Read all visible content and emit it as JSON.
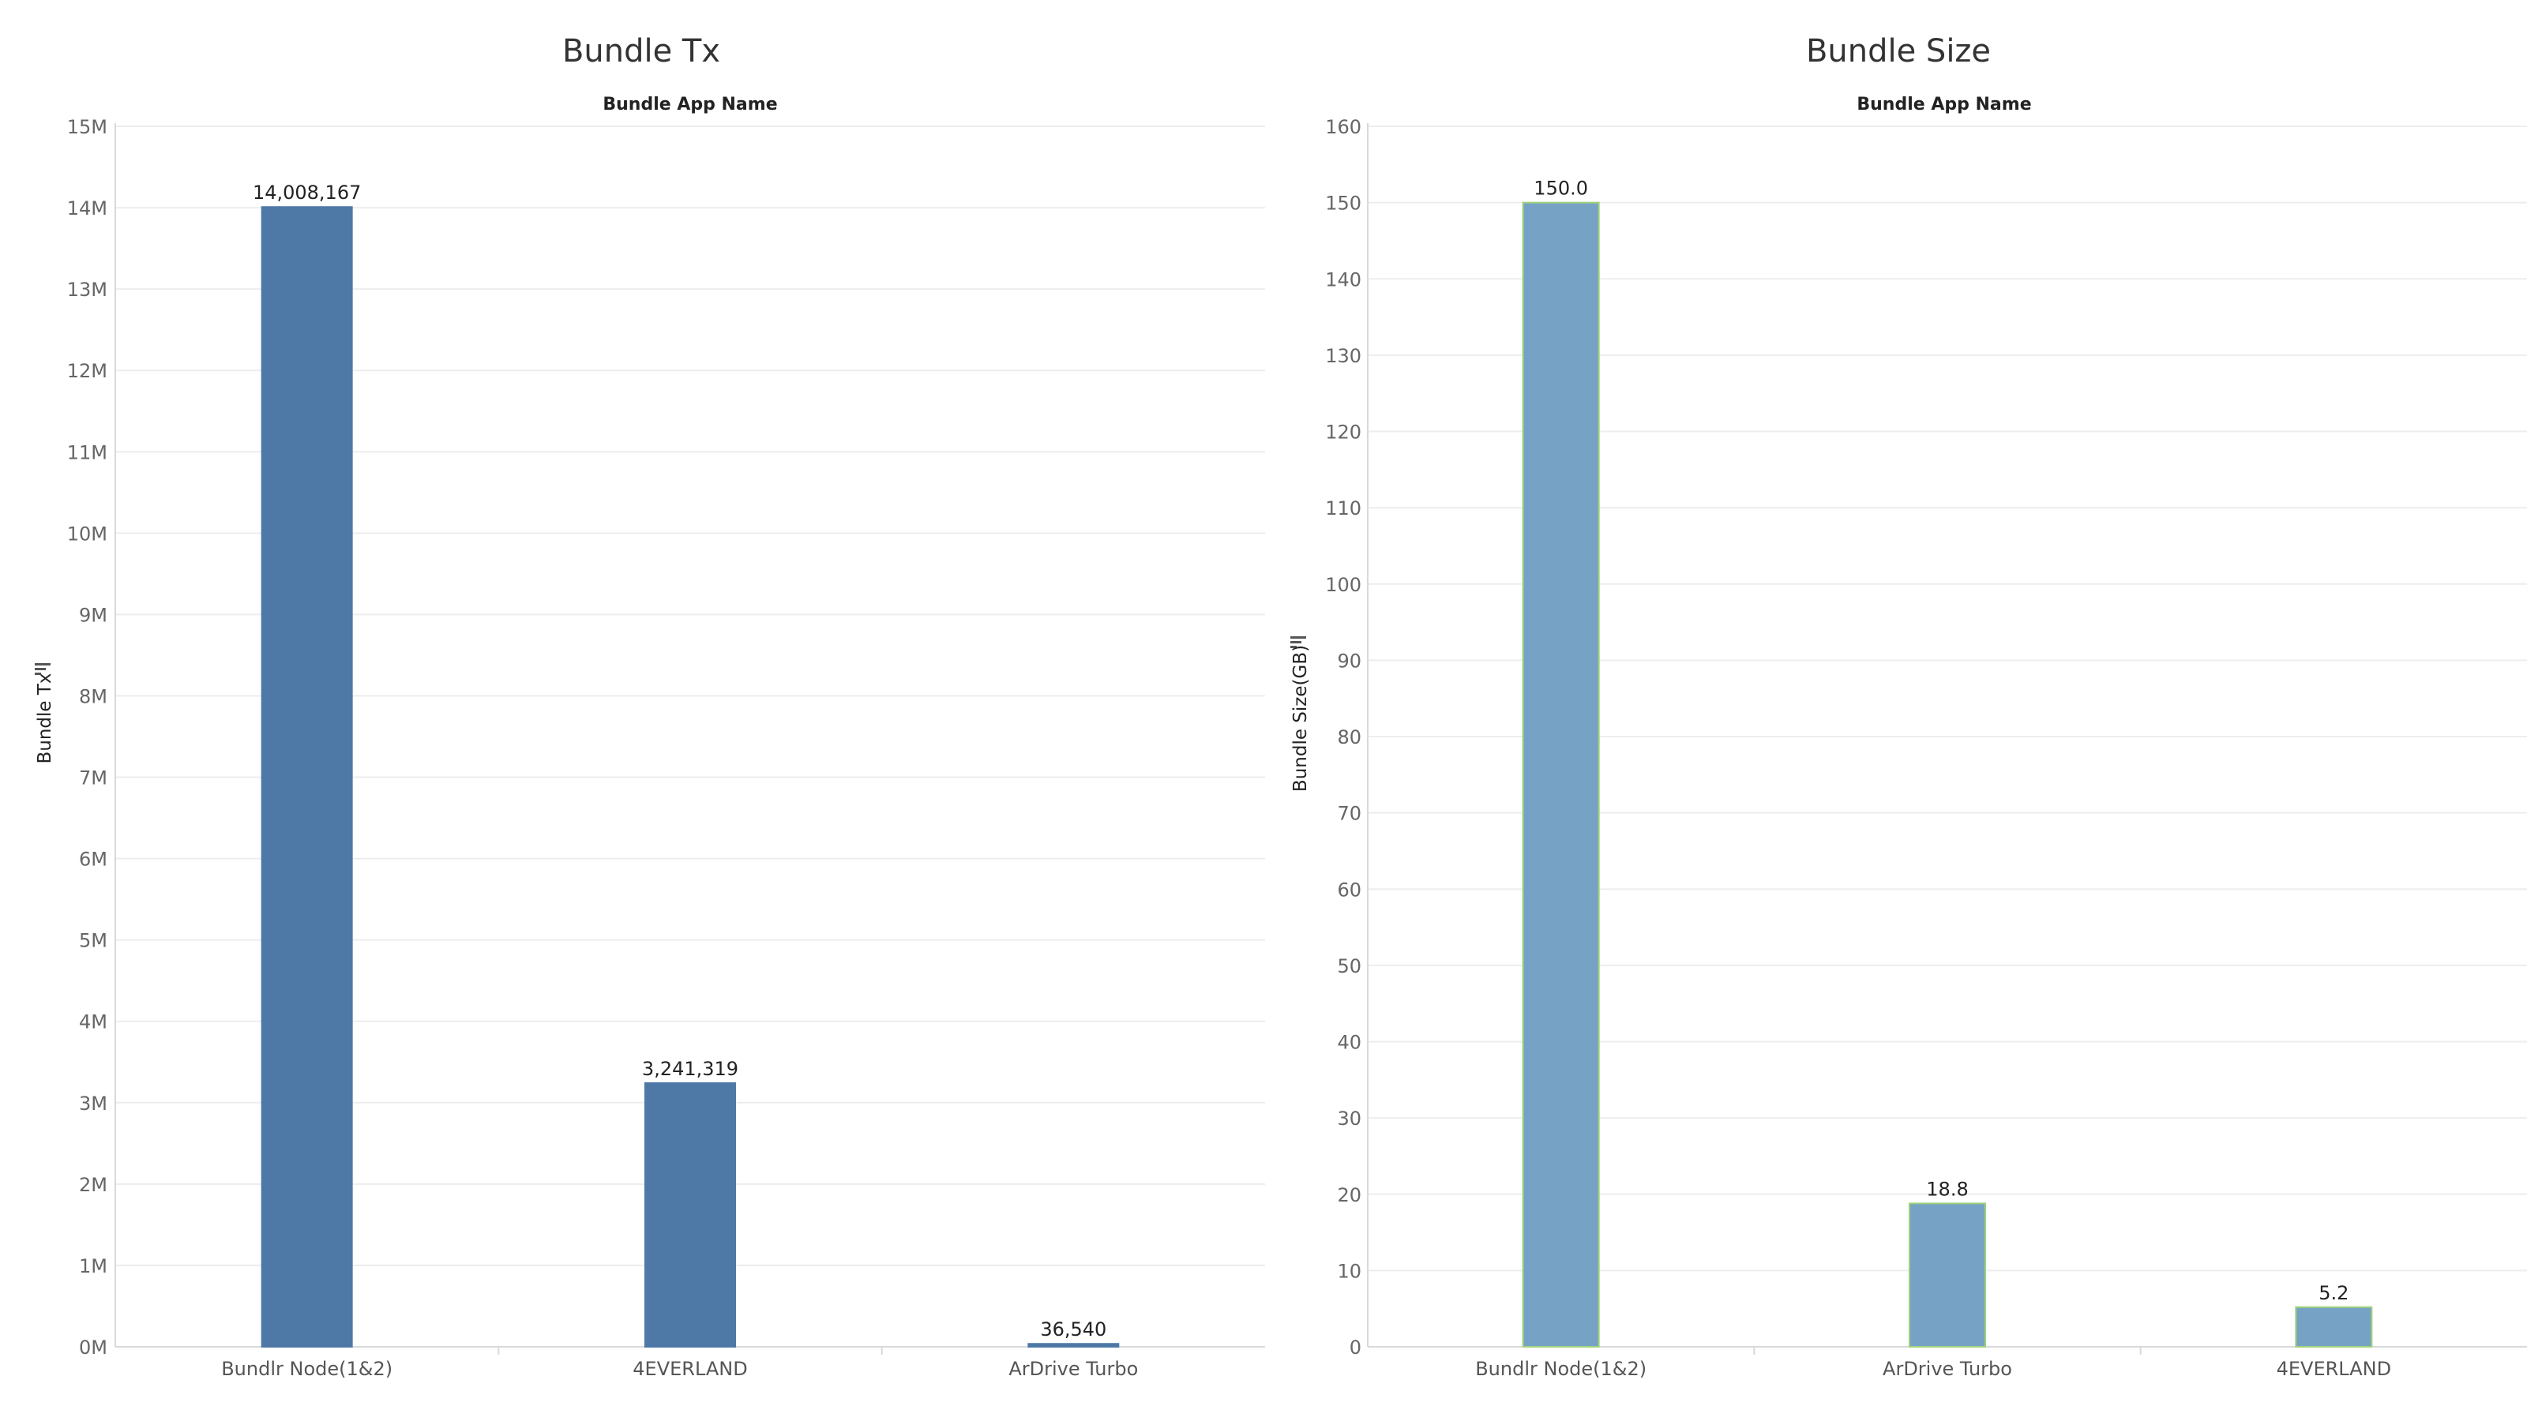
{
  "chart_data": [
    {
      "type": "bar",
      "title": "Bundle Tx",
      "xlabel": "Bundle App Name",
      "ylabel": "Bundle Tx",
      "categories": [
        "Bundlr Node(1&2)",
        "4EVERLAND",
        "ArDrive Turbo"
      ],
      "values": [
        14008167,
        3241319,
        36540
      ],
      "value_labels": [
        "14,008,167",
        "3,241,319",
        "36,540"
      ],
      "yticks": [
        "0M",
        "1M",
        "2M",
        "3M",
        "4M",
        "5M",
        "6M",
        "7M",
        "8M",
        "9M",
        "10M",
        "11M",
        "12M",
        "13M",
        "14M",
        "15M"
      ],
      "ylim": [
        0,
        15000000
      ],
      "grid": true,
      "bar_color": "#4e79a7",
      "bar_stroke": "#4e79a7"
    },
    {
      "type": "bar",
      "title": "Bundle Size",
      "xlabel": "Bundle App Name",
      "ylabel": "Bundle Size(GB)",
      "categories": [
        "Bundlr Node(1&2)",
        "ArDrive Turbo",
        "4EVERLAND"
      ],
      "values": [
        150.0,
        18.8,
        5.2
      ],
      "value_labels": [
        "150.0",
        "18.8",
        "5.2"
      ],
      "yticks": [
        "0",
        "10",
        "20",
        "30",
        "40",
        "50",
        "60",
        "70",
        "80",
        "90",
        "100",
        "110",
        "120",
        "130",
        "140",
        "150",
        "160"
      ],
      "ylim": [
        0,
        160
      ],
      "grid": true,
      "bar_color": "#76a2c6",
      "bar_stroke": "#9fd279"
    }
  ]
}
